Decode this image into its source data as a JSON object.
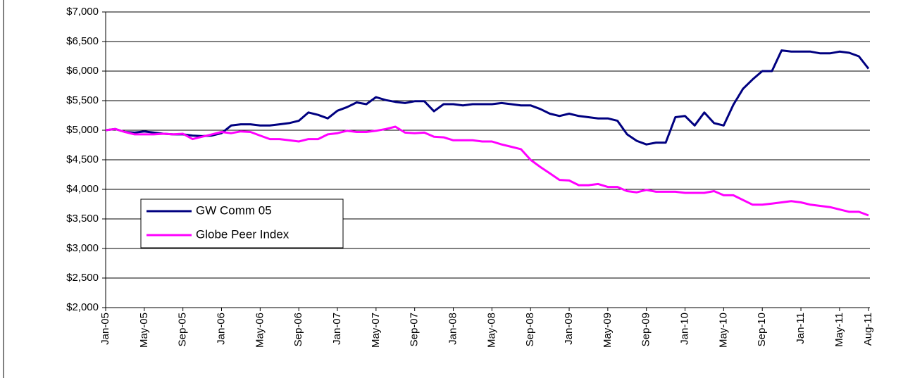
{
  "chart_data": {
    "type": "line",
    "categories": [
      "Jan-05",
      null,
      null,
      null,
      "May-05",
      null,
      null,
      null,
      "Sep-05",
      null,
      null,
      null,
      "Jan-06",
      null,
      null,
      null,
      "May-06",
      null,
      null,
      null,
      "Sep-06",
      null,
      null,
      null,
      "Jan-07",
      null,
      null,
      null,
      "May-07",
      null,
      null,
      null,
      "Sep-07",
      null,
      null,
      null,
      "Jan-08",
      null,
      null,
      null,
      "May-08",
      null,
      null,
      null,
      "Sep-08",
      null,
      null,
      null,
      "Jan-09",
      null,
      null,
      null,
      "May-09",
      null,
      null,
      null,
      "Sep-09",
      null,
      null,
      null,
      "Jan-10",
      null,
      null,
      null,
      "May-10",
      null,
      null,
      null,
      "Sep-10",
      null,
      null,
      null,
      "Jan-11",
      null,
      null,
      null,
      "May-11",
      null,
      null,
      "Aug-11"
    ],
    "series": [
      {
        "name": "GW Comm 05",
        "color": "#000080",
        "values": [
          5000,
          5020,
          4970,
          4960,
          4980,
          4960,
          4940,
          4930,
          4930,
          4910,
          4900,
          4910,
          4950,
          5080,
          5100,
          5100,
          5080,
          5080,
          5100,
          5120,
          5160,
          5300,
          5260,
          5200,
          5330,
          5390,
          5470,
          5440,
          5560,
          5510,
          5480,
          5460,
          5490,
          5490,
          5320,
          5440,
          5440,
          5420,
          5440,
          5440,
          5440,
          5460,
          5440,
          5420,
          5420,
          5360,
          5280,
          5240,
          5280,
          5240,
          5220,
          5200,
          5200,
          5160,
          4930,
          4820,
          4760,
          4790,
          4790,
          5220,
          5240,
          5080,
          5300,
          5120,
          5080,
          5430,
          5700,
          5860,
          6000,
          6000,
          6350,
          6330,
          6330,
          6330,
          6300,
          6300,
          6330,
          6310,
          6250,
          6040
        ]
      },
      {
        "name": "Globe Peer Index",
        "color": "#ff00ff",
        "values": [
          5000,
          5020,
          4970,
          4930,
          4930,
          4930,
          4940,
          4930,
          4940,
          4850,
          4890,
          4930,
          4970,
          4950,
          4980,
          4970,
          4910,
          4850,
          4850,
          4830,
          4810,
          4850,
          4850,
          4930,
          4950,
          4990,
          4970,
          4970,
          4990,
          5020,
          5060,
          4960,
          4950,
          4960,
          4890,
          4880,
          4830,
          4830,
          4830,
          4810,
          4810,
          4760,
          4720,
          4680,
          4500,
          4380,
          4270,
          4160,
          4150,
          4070,
          4070,
          4090,
          4040,
          4040,
          3970,
          3950,
          3990,
          3960,
          3960,
          3960,
          3940,
          3940,
          3940,
          3970,
          3900,
          3900,
          3820,
          3740,
          3740,
          3760,
          3780,
          3800,
          3780,
          3740,
          3720,
          3700,
          3660,
          3620,
          3620,
          3560
        ]
      }
    ],
    "ylim": [
      2000,
      7000
    ],
    "yticks": [
      {
        "value": 2000,
        "label": "$2,000"
      },
      {
        "value": 2500,
        "label": "$2,500"
      },
      {
        "value": 3000,
        "label": "$3,000"
      },
      {
        "value": 3500,
        "label": "$3,500"
      },
      {
        "value": 4000,
        "label": "$4,000"
      },
      {
        "value": 4500,
        "label": "$4,500"
      },
      {
        "value": 5000,
        "label": "$5,000"
      },
      {
        "value": 5500,
        "label": "$5,500"
      },
      {
        "value": 6000,
        "label": "$6,000"
      },
      {
        "value": 6500,
        "label": "$6,500"
      },
      {
        "value": 7000,
        "label": "$7,000"
      }
    ],
    "grid": true,
    "legend_position": "center-left"
  }
}
